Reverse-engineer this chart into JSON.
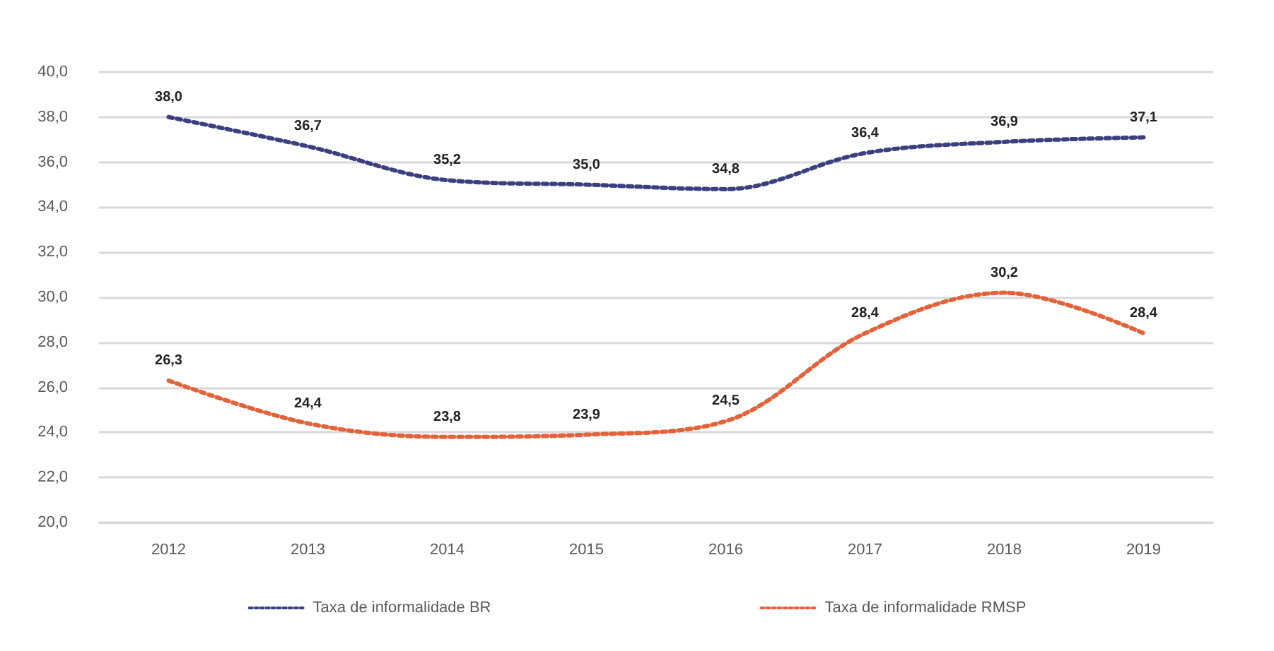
{
  "chart_data": {
    "type": "line",
    "categories": [
      "2012",
      "2013",
      "2014",
      "2015",
      "2016",
      "2017",
      "2018",
      "2019"
    ],
    "series": [
      {
        "name": "Taxa de informalidade BR",
        "color": "#3b3f80",
        "values": [
          38.0,
          36.7,
          35.2,
          35.0,
          34.8,
          36.4,
          36.9,
          37.1
        ],
        "value_labels": [
          "38,0",
          "36,7",
          "35,2",
          "35,0",
          "34,8",
          "36,4",
          "36,9",
          "37,1"
        ]
      },
      {
        "name": "Taxa de informalidade RMSP",
        "color": "#e2623a",
        "values": [
          26.3,
          24.4,
          23.8,
          23.9,
          24.5,
          28.4,
          30.2,
          28.4
        ],
        "value_labels": [
          "26,3",
          "24,4",
          "23,8",
          "23,9",
          "24,5",
          "28,4",
          "30,2",
          "28,4"
        ]
      }
    ],
    "ylim": [
      20,
      40
    ],
    "yticks": [
      {
        "value": 20,
        "label": "20,0"
      },
      {
        "value": 22,
        "label": "22,0"
      },
      {
        "value": 24,
        "label": "24,0"
      },
      {
        "value": 26,
        "label": "26,0"
      },
      {
        "value": 28,
        "label": "28,0"
      },
      {
        "value": 30,
        "label": "30,0"
      },
      {
        "value": 32,
        "label": "32,0"
      },
      {
        "value": 34,
        "label": "34,0"
      },
      {
        "value": 36,
        "label": "36,0"
      },
      {
        "value": 38,
        "label": "38,0"
      },
      {
        "value": 40,
        "label": "40,0"
      }
    ],
    "grid": "y",
    "legend": "bottom",
    "marker": "none",
    "line_style": "dotted"
  }
}
